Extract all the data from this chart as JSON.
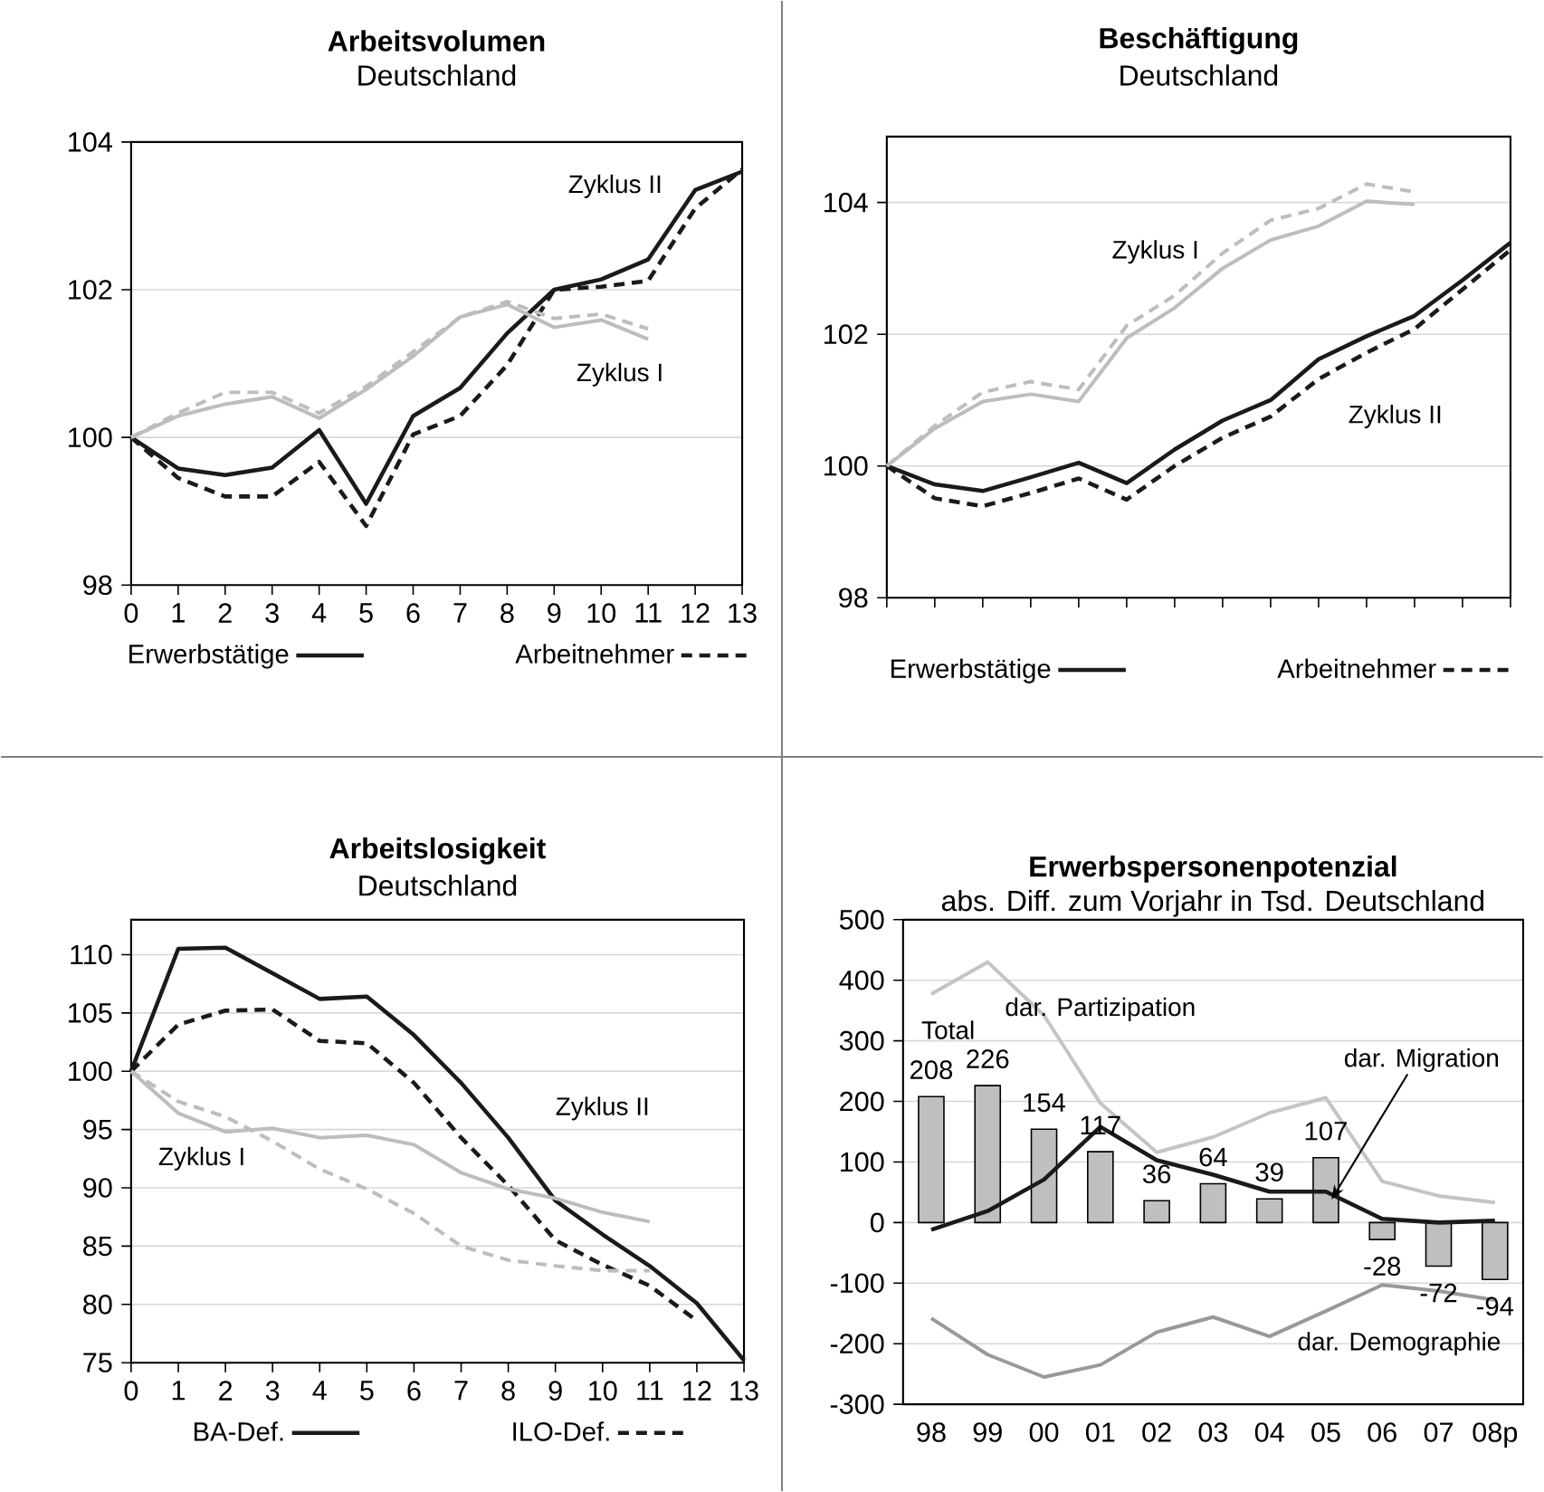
{
  "chart_data": [
    {
      "type": "line",
      "title": "Arbeitsvolumen",
      "subtitle": "Deutschland",
      "x": [
        0,
        1,
        2,
        3,
        4,
        5,
        6,
        7,
        8,
        9,
        10,
        11,
        12,
        13
      ],
      "xlim": [
        0,
        13
      ],
      "xticks": [
        0,
        1,
        2,
        3,
        4,
        5,
        6,
        7,
        8,
        9,
        10,
        11,
        12,
        13
      ],
      "ylim": [
        98,
        104
      ],
      "yticks": [
        98,
        100,
        102,
        104
      ],
      "grid": "y",
      "legend": "bottom",
      "series": [
        {
          "name": "Erwerbstätige",
          "color": "#1a1a1a",
          "line_style": "solid",
          "values": [
            100,
            99.58,
            99.49,
            99.59,
            100.1,
            99.1,
            100.29,
            100.67,
            101.41,
            102.0,
            102.14,
            102.41,
            103.35,
            103.6
          ]
        },
        {
          "name": "Arbeitnehmer",
          "color": "#1a1a1a",
          "line_style": "dashed",
          "values": [
            100,
            99.45,
            99.2,
            99.2,
            99.67,
            98.8,
            100.04,
            100.29,
            100.98,
            102.0,
            102.04,
            102.12,
            103.1,
            103.63
          ]
        },
        {
          "color": "#bdbdbd",
          "line_style": "solid",
          "values": [
            100,
            100.29,
            100.45,
            100.55,
            100.26,
            100.65,
            101.1,
            101.63,
            101.8,
            101.49,
            101.59,
            101.33,
            null,
            null
          ]
        },
        {
          "color": "#bdbdbd",
          "line_style": "dashed",
          "values": [
            100,
            100.33,
            100.61,
            100.61,
            100.33,
            100.69,
            101.16,
            101.63,
            101.84,
            101.61,
            101.67,
            101.47,
            null,
            null
          ]
        }
      ],
      "annotations": [
        "Zyklus II",
        "Zyklus I"
      ]
    },
    {
      "type": "line",
      "title": "Beschäftigung",
      "subtitle": "Deutschland",
      "categories": [
        null,
        null,
        null,
        null,
        null,
        null,
        null,
        null,
        null,
        null,
        null,
        null,
        null,
        null
      ],
      "ylim": [
        98,
        105
      ],
      "yticks": [
        98,
        100,
        102,
        104
      ],
      "grid": "y",
      "legend": "bottom",
      "series": [
        {
          "name": "Erwerbstätige",
          "color": "#1a1a1a",
          "line_style": "solid",
          "values": [
            100,
            99.72,
            99.62,
            99.83,
            100.05,
            99.74,
            100.25,
            100.69,
            101.0,
            101.62,
            101.97,
            102.28,
            102.82,
            103.39
          ]
        },
        {
          "name": "Arbeitnehmer",
          "color": "#1a1a1a",
          "line_style": "dashed",
          "values": [
            100,
            99.51,
            99.39,
            99.59,
            99.81,
            99.49,
            100.0,
            100.43,
            100.75,
            101.32,
            101.72,
            102.08,
            102.68,
            103.28
          ]
        },
        {
          "color": "#bdbdbd",
          "line_style": "solid",
          "values": [
            100,
            100.57,
            100.98,
            101.09,
            100.98,
            101.94,
            102.4,
            103.0,
            103.43,
            103.64,
            104.02,
            103.97,
            null,
            null
          ]
        },
        {
          "color": "#bdbdbd",
          "line_style": "dashed",
          "values": [
            100,
            100.61,
            101.12,
            101.28,
            101.16,
            102.13,
            102.59,
            103.23,
            103.73,
            103.91,
            104.28,
            104.16,
            null,
            null
          ]
        }
      ],
      "annotations": [
        "Zyklus I",
        "Zyklus II"
      ]
    },
    {
      "type": "line",
      "title": "Arbeitslosigkeit",
      "subtitle": "Deutschland",
      "x": [
        0,
        1,
        2,
        3,
        4,
        5,
        6,
        7,
        8,
        9,
        10,
        11,
        12,
        13
      ],
      "xlim": [
        0,
        13
      ],
      "xticks": [
        0,
        1,
        2,
        3,
        4,
        5,
        6,
        7,
        8,
        9,
        10,
        11,
        12,
        13
      ],
      "ylim": [
        75,
        113
      ],
      "yticks": [
        75,
        80,
        85,
        90,
        95,
        100,
        105,
        110
      ],
      "grid": "y",
      "legend": "bottom",
      "series": [
        {
          "name": "BA-Def.",
          "color": "#1a1a1a",
          "line_style": "solid",
          "values": [
            100,
            110.5,
            110.6,
            108.4,
            106.2,
            106.4,
            103.1,
            99.0,
            94.3,
            88.9,
            86.0,
            83.3,
            80.1,
            75.2
          ]
        },
        {
          "name": "ILO-Def.",
          "color": "#1a1a1a",
          "line_style": "dashed",
          "values": [
            100,
            104.0,
            105.2,
            105.3,
            102.6,
            102.4,
            99.0,
            94.3,
            90.2,
            85.5,
            83.4,
            81.6,
            78.6,
            null
          ]
        },
        {
          "color": "#bdbdbd",
          "line_style": "solid",
          "values": [
            100,
            96.4,
            94.8,
            95.1,
            94.3,
            94.5,
            93.7,
            91.3,
            89.9,
            89.1,
            87.9,
            87.1,
            null,
            null
          ]
        },
        {
          "color": "#bdbdbd",
          "line_style": "dashed",
          "values": [
            100,
            97.4,
            96.1,
            94.0,
            91.6,
            89.9,
            87.8,
            85.0,
            83.8,
            83.3,
            82.9,
            82.9,
            null,
            null
          ]
        }
      ],
      "annotations": [
        "Zyklus II",
        "Zyklus I"
      ]
    },
    {
      "type": "bar",
      "title": "Erwerbspersonenpotenzial",
      "subtitle": "abs. Diff. zum Vorjahr in Tsd. Deutschland",
      "categories": [
        "98",
        "99",
        "00",
        "01",
        "02",
        "03",
        "04",
        "05",
        "06",
        "07",
        "08p"
      ],
      "ylim": [
        -300,
        500
      ],
      "yticks": [
        -300,
        -200,
        -100,
        0,
        100,
        200,
        300,
        400,
        500
      ],
      "grid": "y",
      "series": [
        {
          "color": "#bfbfbf",
          "values": [
            208,
            226,
            154,
            117,
            36,
            64,
            39,
            107,
            -28,
            -72,
            -94
          ],
          "value_labels": [
            "208",
            "226",
            "154",
            "117",
            "36",
            "64",
            "39",
            "107",
            "-28",
            "-72",
            "-94"
          ]
        },
        {
          "type": "line",
          "name": "dar. Partizipation",
          "color": "#c4c4c4",
          "values": [
            377,
            430,
            342,
            197,
            116,
            141,
            181,
            206,
            68,
            44,
            33
          ]
        },
        {
          "type": "line",
          "name": "dar. Migration",
          "color": "#1a1a1a",
          "values": [
            -12,
            19,
            71,
            158,
            103,
            79,
            51,
            51,
            6,
            0,
            3
          ]
        },
        {
          "type": "line",
          "name": "dar. Demographie",
          "color": "#999999",
          "values": [
            -158,
            -218,
            -255,
            -235,
            -181,
            -156,
            -188,
            -146,
            -103,
            -113,
            -128
          ]
        }
      ],
      "annotations": [
        "Total"
      ]
    }
  ]
}
